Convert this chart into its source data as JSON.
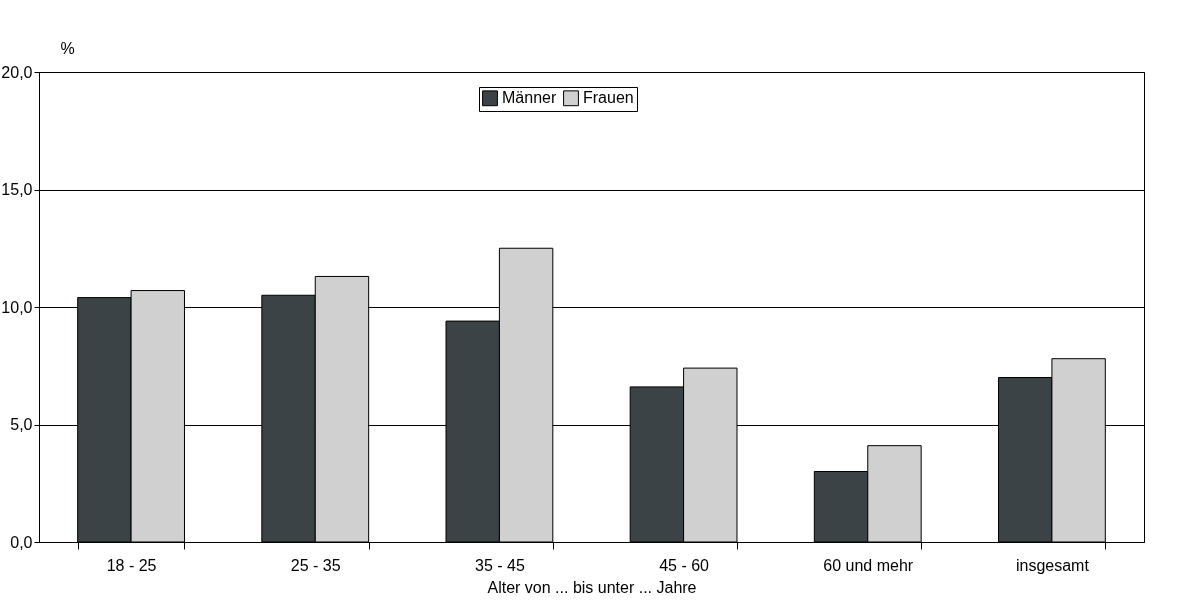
{
  "chart_data": {
    "type": "bar",
    "xlabel": "Alter von ... bis unter ... Jahre",
    "ylabel": "%",
    "categories": [
      "18 - 25",
      "25 - 35",
      "35 - 45",
      "45 - 60",
      "60 und mehr",
      "insgesamt"
    ],
    "series": [
      {
        "name": "Männer",
        "color": "#3b4346",
        "values": [
          10.4,
          10.5,
          9.4,
          6.6,
          3.0,
          7.0
        ]
      },
      {
        "name": "Frauen",
        "color": "#d0d0d0",
        "values": [
          10.7,
          11.3,
          12.5,
          7.4,
          4.1,
          7.8
        ]
      }
    ],
    "ylim": [
      0,
      20
    ],
    "yticks": [
      {
        "value": 0,
        "label": "0,0"
      },
      {
        "value": 5,
        "label": "5,0"
      },
      {
        "value": 10,
        "label": "10,0"
      },
      {
        "value": 15,
        "label": "15,0"
      },
      {
        "value": 20,
        "label": "20,0"
      }
    ],
    "grid": "y",
    "legend": "top"
  }
}
